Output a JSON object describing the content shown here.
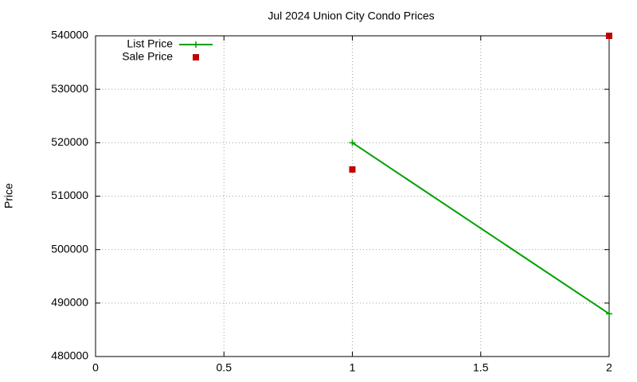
{
  "chart_data": {
    "type": "line",
    "title": "Jul 2024 Union City Condo Prices",
    "y_label": "Price",
    "x": [
      1,
      2
    ],
    "series": [
      {
        "name": "List Price",
        "color": "#00a000",
        "mode": "lines+markers",
        "marker": "plus",
        "values": [
          520000,
          488000
        ]
      },
      {
        "name": "Sale Price",
        "color": "#c00000",
        "mode": "markers",
        "marker": "square",
        "values": [
          515000,
          540000
        ]
      }
    ],
    "xlim": [
      0,
      2
    ],
    "xticks": [
      0,
      0.5,
      1,
      1.5,
      2
    ],
    "ylim": [
      480000,
      540000
    ],
    "yticks": [
      480000,
      490000,
      500000,
      510000,
      520000,
      530000,
      540000
    ],
    "grid": true,
    "legend": "top-left"
  }
}
